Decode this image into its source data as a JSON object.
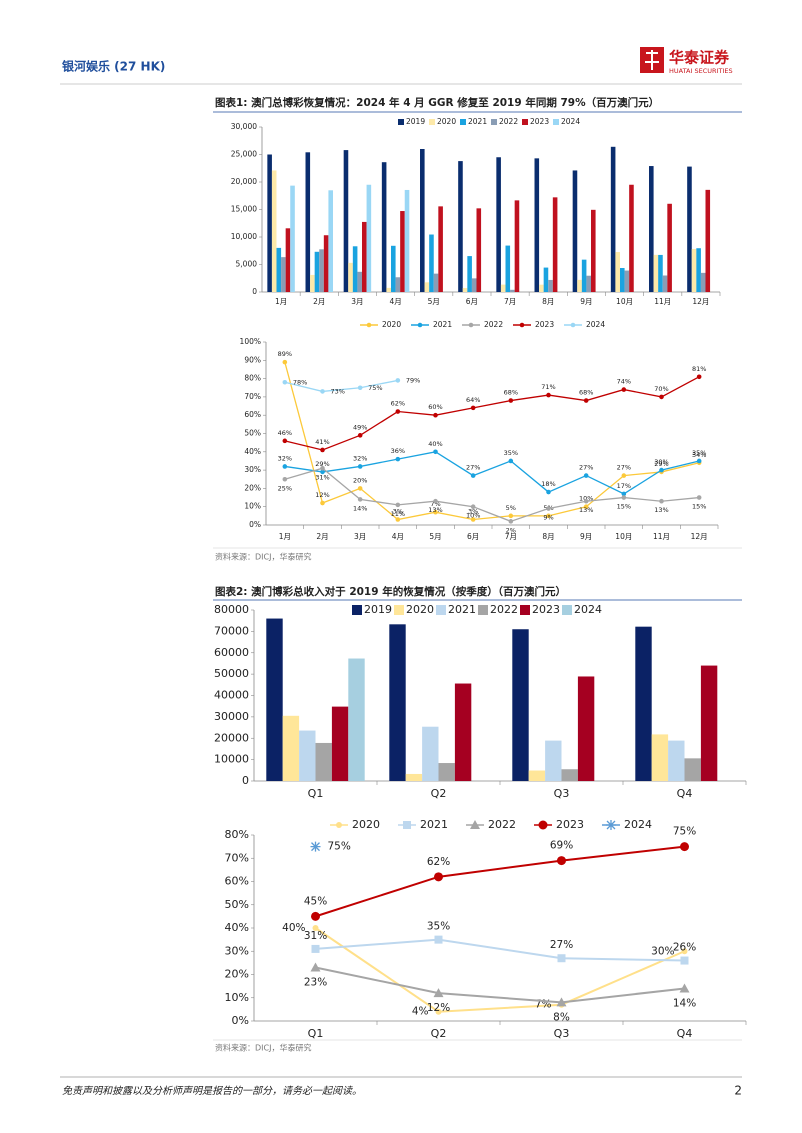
{
  "header": {
    "left": "银河娱乐 (27 HK)",
    "brand": "华泰证券",
    "brand_en": "HUATAI SECURITIES"
  },
  "footer": {
    "disclaimer": "免责声明和披露以及分析师声明是报告的一部分，请务必一起阅读。",
    "page": 2
  },
  "chart_data": [
    {
      "type": "bar",
      "title": "图表1:  澳门总博彩恢复情况：2024 年 4 月 GGR 修复至 2019 年同期 79%（百万澳门元）",
      "categories": [
        "1月",
        "2月",
        "3月",
        "4月",
        "5月",
        "6月",
        "7月",
        "8月",
        "9月",
        "10月",
        "11月",
        "12月"
      ],
      "series": [
        {
          "name": "2019",
          "color": "#0a2d6e",
          "values": [
            25000,
            25400,
            25800,
            23600,
            26000,
            23800,
            24500,
            24300,
            22100,
            26400,
            22900,
            22800
          ]
        },
        {
          "name": "2020",
          "color": "#fde9a9",
          "values": [
            22100,
            3100,
            5300,
            750,
            1760,
            720,
            1340,
            1330,
            2210,
            7270,
            6750,
            7820
          ]
        },
        {
          "name": "2021",
          "color": "#1aa3e0",
          "values": [
            8020,
            7310,
            8310,
            8400,
            10450,
            6530,
            8440,
            4440,
            5880,
            4360,
            6740,
            7960
          ]
        },
        {
          "name": "2022",
          "color": "#8a9db5",
          "values": [
            6340,
            7760,
            3670,
            2680,
            3340,
            2480,
            400,
            2190,
            2960,
            3900,
            3000,
            3480
          ]
        },
        {
          "name": "2023",
          "color": "#c0111f",
          "values": [
            11580,
            10320,
            12740,
            14720,
            15570,
            15210,
            16660,
            17210,
            14940,
            19500,
            16040,
            18570
          ]
        },
        {
          "name": "2024",
          "color": "#9ad7f5",
          "values": [
            19340,
            18490,
            19500,
            18550,
            null,
            null,
            null,
            null,
            null,
            null,
            null,
            null
          ]
        }
      ],
      "ylim": [
        0,
        30000
      ],
      "yticks": [
        0,
        {
          "value": 5000,
          "label": "5,000"
        },
        {
          "value": 10000,
          "label": "10,000"
        },
        {
          "value": 15000,
          "label": "15,000"
        },
        {
          "value": 20000,
          "label": "20,000"
        },
        {
          "value": 25000,
          "label": "25,000"
        },
        {
          "value": 30000,
          "label": "30,000"
        }
      ],
      "grid": false,
      "legend": "top"
    },
    {
      "type": "line",
      "categories": [
        "1月",
        "2月",
        "3月",
        "4月",
        "5月",
        "6月",
        "7月",
        "8月",
        "9月",
        "10月",
        "11月",
        "12月"
      ],
      "series": [
        {
          "name": "2020",
          "color": "#fcc93a",
          "marker": "small-circle",
          "values": [
            89,
            12,
            20,
            3,
            7,
            3,
            5,
            5,
            10,
            27,
            29,
            34
          ],
          "value_labels": [
            "89%",
            "12%",
            "20%",
            "3%",
            "7%",
            "3%",
            "5%",
            "5%",
            "10%",
            "27%",
            "29%",
            "34%"
          ]
        },
        {
          "name": "2021",
          "color": "#1aa3e0",
          "marker": "small-circle",
          "values": [
            32,
            29,
            32,
            36,
            40,
            27,
            35,
            18,
            27,
            17,
            30,
            35
          ],
          "value_labels": [
            "32%",
            "29%",
            "32%",
            "36%",
            "40%",
            "27%",
            "35%",
            "18%",
            "27%",
            "17%",
            "30%",
            "35%"
          ]
        },
        {
          "name": "2022",
          "color": "#a6a6a6",
          "marker": "small-circle",
          "values": [
            25,
            31,
            14,
            11,
            13,
            10,
            2,
            9,
            13,
            15,
            13,
            15
          ],
          "value_labels": [
            "25%",
            "31%",
            "14%",
            "11%",
            "13%",
            "10%",
            "2%",
            "9%",
            "13%",
            "15%",
            "13%",
            "15%"
          ]
        },
        {
          "name": "2023",
          "color": "#c00000",
          "marker": "small-circle",
          "values": [
            46,
            41,
            49,
            62,
            60,
            64,
            68,
            71,
            68,
            74,
            70,
            81
          ],
          "value_labels": [
            "46%",
            "41%",
            "49%",
            "62%",
            "60%",
            "64%",
            "68%",
            "71%",
            "68%",
            "74%",
            "70%",
            "81%"
          ]
        },
        {
          "name": "2024",
          "color": "#9ad7f5",
          "marker": "small-circle",
          "values": [
            78,
            73,
            75,
            79,
            null,
            null,
            null,
            null,
            null,
            null,
            null,
            null
          ],
          "value_labels": [
            "78%",
            "73%",
            "75%",
            "79%",
            null,
            null,
            null,
            null,
            null,
            null,
            null,
            null
          ]
        }
      ],
      "ylim": [
        0,
        100
      ],
      "yticks": [
        {
          "value": 0,
          "label": "0%"
        },
        {
          "value": 10,
          "label": "10%"
        },
        {
          "value": 20,
          "label": "20%"
        },
        {
          "value": 30,
          "label": "30%"
        },
        {
          "value": 40,
          "label": "40%"
        },
        {
          "value": 50,
          "label": "50%"
        },
        {
          "value": 60,
          "label": "60%"
        },
        {
          "value": 70,
          "label": "70%"
        },
        {
          "value": 80,
          "label": "80%"
        },
        {
          "value": 90,
          "label": "90%"
        },
        {
          "value": 100,
          "label": "100%"
        }
      ],
      "grid": false,
      "legend": "top",
      "source": "资料来源：DICJ，华泰研究"
    },
    {
      "type": "bar",
      "title": "图表2:  澳门博彩总收入对于 2019 年的恢复情况（按季度）（百万澳门元）",
      "categories": [
        "Q1",
        "Q2",
        "Q3",
        "Q4"
      ],
      "series": [
        {
          "name": "2019",
          "color": "#0b2265",
          "values": [
            76000,
            73300,
            71000,
            72200
          ]
        },
        {
          "name": "2020",
          "color": "#ffe699",
          "values": [
            30500,
            3300,
            4900,
            21800
          ]
        },
        {
          "name": "2021",
          "color": "#bdd7ee",
          "values": [
            23600,
            25400,
            18900,
            18900
          ]
        },
        {
          "name": "2022",
          "color": "#a5a5a5",
          "values": [
            17800,
            8400,
            5500,
            10600
          ]
        },
        {
          "name": "2023",
          "color": "#a50021",
          "values": [
            34800,
            45600,
            48900,
            54000
          ]
        },
        {
          "name": "2024",
          "color": "#a6cfe0",
          "values": [
            57300,
            null,
            null,
            null
          ]
        }
      ],
      "ylim": [
        0,
        80000
      ],
      "yticks": [
        0,
        10000,
        20000,
        30000,
        40000,
        50000,
        60000,
        70000,
        80000
      ],
      "grid": false,
      "legend": "top"
    },
    {
      "type": "line",
      "categories": [
        "Q1",
        "Q2",
        "Q3",
        "Q4"
      ],
      "series": [
        {
          "name": "2020",
          "color": "#ffe08a",
          "marker": "small-circle",
          "values": [
            40,
            4,
            7,
            30
          ],
          "value_labels": [
            "40%",
            "4%",
            "7%",
            "30%"
          ]
        },
        {
          "name": "2021",
          "color": "#bdd7ee",
          "marker": "square",
          "values": [
            31,
            35,
            27,
            26
          ],
          "value_labels": [
            "31%",
            "35%",
            "27%",
            "26%"
          ]
        },
        {
          "name": "2022",
          "color": "#a5a5a5",
          "marker": "triangle",
          "values": [
            23,
            12,
            8,
            14
          ],
          "value_labels": [
            "23%",
            "12%",
            "8%",
            "14%"
          ]
        },
        {
          "name": "2023",
          "color": "#c00000",
          "marker": "circle",
          "values": [
            45,
            62,
            69,
            75
          ],
          "value_labels": [
            "45%",
            "62%",
            "69%",
            "75%"
          ]
        },
        {
          "name": "2024",
          "color": "#5b9bd5",
          "marker": "asterisk",
          "values": [
            75,
            null,
            null,
            null
          ],
          "value_labels": [
            "75%",
            null,
            null,
            null
          ]
        }
      ],
      "ylim": [
        0,
        80
      ],
      "yticks": [
        {
          "value": 0,
          "label": "0%"
        },
        {
          "value": 10,
          "label": "10%"
        },
        {
          "value": 20,
          "label": "20%"
        },
        {
          "value": 30,
          "label": "30%"
        },
        {
          "value": 40,
          "label": "40%"
        },
        {
          "value": 50,
          "label": "50%"
        },
        {
          "value": 60,
          "label": "60%"
        },
        {
          "value": 70,
          "label": "70%"
        },
        {
          "value": 80,
          "label": "80%"
        }
      ],
      "grid": false,
      "legend": "top",
      "source": "资料来源：DICJ，华泰研究"
    }
  ]
}
